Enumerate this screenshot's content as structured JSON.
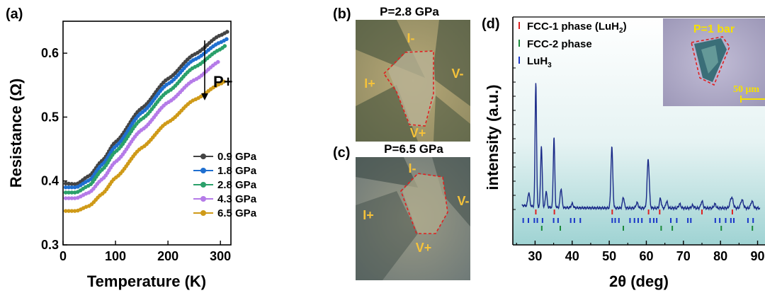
{
  "panel_labels": [
    "(a)",
    "(b)",
    "(c)",
    "(d)"
  ],
  "chart_data": [
    {
      "type": "scatter",
      "xlabel": "Temperature (K)",
      "ylabel": "Resistance (Ω)",
      "xlim": [
        0,
        320
      ],
      "ylim": [
        0.3,
        0.65
      ],
      "xticks": [
        0,
        100,
        200,
        300
      ],
      "yticks": [
        0.3,
        0.4,
        0.5,
        0.6
      ],
      "xtick_labels": [
        "0",
        "100",
        "200",
        "300"
      ],
      "ytick_labels": [
        "0.3",
        "0.4",
        "0.5",
        "0.6"
      ],
      "legend_position": "bottom-right",
      "annotation": "P+",
      "series": [
        {
          "name": "0.9 GPa",
          "color": "#444444",
          "x": [
            5,
            25,
            50,
            75,
            100,
            150,
            200,
            250,
            300,
            315
          ],
          "y": [
            0.396,
            0.395,
            0.408,
            0.432,
            0.461,
            0.514,
            0.56,
            0.598,
            0.628,
            0.634
          ]
        },
        {
          "name": "1.8 GPa",
          "color": "#1f6fd0",
          "x": [
            5,
            25,
            50,
            75,
            100,
            150,
            200,
            250,
            300,
            315
          ],
          "y": [
            0.39,
            0.39,
            0.401,
            0.426,
            0.454,
            0.507,
            0.552,
            0.59,
            0.617,
            0.623
          ]
        },
        {
          "name": "2.8 GPa",
          "color": "#2aa06a",
          "x": [
            5,
            25,
            50,
            75,
            100,
            150,
            200,
            250,
            300,
            310
          ],
          "y": [
            0.382,
            0.382,
            0.393,
            0.418,
            0.446,
            0.497,
            0.54,
            0.578,
            0.606,
            0.612
          ]
        },
        {
          "name": "4.3 GPa",
          "color": "#b57be8",
          "x": [
            5,
            25,
            50,
            75,
            100,
            150,
            200,
            250,
            300
          ],
          "y": [
            0.373,
            0.373,
            0.382,
            0.403,
            0.43,
            0.48,
            0.523,
            0.558,
            0.588
          ]
        },
        {
          "name": "6.5 GPa",
          "color": "#cf9a18",
          "x": [
            5,
            25,
            50,
            75,
            100,
            150,
            200,
            250,
            300,
            310
          ],
          "y": [
            0.353,
            0.353,
            0.361,
            0.38,
            0.405,
            0.452,
            0.492,
            0.527,
            0.552,
            0.557
          ]
        }
      ]
    },
    {
      "type": "line",
      "xlabel": "2θ (deg)",
      "ylabel": "intensity (a.u.)",
      "xlim": [
        24,
        92
      ],
      "xticks": [
        30,
        40,
        50,
        60,
        70,
        80,
        90
      ],
      "xtick_labels": [
        "30",
        "40",
        "50",
        "60",
        "70",
        "80",
        "90"
      ],
      "legend_position": "top-left",
      "series": [
        {
          "name": "FCC-1 phase (LuH2)",
          "color": "#dd2222",
          "ticks": [
            30.2,
            35.2,
            50.8,
            60.6,
            63.6,
            75.0,
            83.2
          ]
        },
        {
          "name": "FCC-2 phase",
          "color": "#1b8a3a",
          "ticks": [
            31.8,
            36.8,
            53.8,
            64.0,
            67.0,
            80.2,
            88.6
          ]
        },
        {
          "name": "LuH3",
          "color": "#1a36c8",
          "ticks": [
            26.8,
            28.2,
            29.8,
            30.6,
            32.0,
            35.0,
            36.2,
            39.6,
            40.6,
            42.2,
            50.8,
            51.6,
            52.6,
            55.6,
            56.8,
            57.8,
            58.8,
            61.0,
            62.0,
            62.8,
            66.6,
            68.2,
            71.2,
            72.0,
            78.6,
            79.8,
            81.4,
            82.8,
            83.6,
            87.4,
            88.8
          ]
        },
        {
          "name": "pattern",
          "color": "#1a2a88",
          "peaks": [
            [
              28.3,
              0.1,
              0.35
            ],
            [
              30.2,
              0.92,
              0.28
            ],
            [
              31.7,
              0.45,
              0.3
            ],
            [
              33.0,
              0.12,
              0.3
            ],
            [
              35.1,
              0.52,
              0.28
            ],
            [
              37.0,
              0.14,
              0.35
            ],
            [
              40.0,
              0.03,
              0.4
            ],
            [
              50.7,
              0.45,
              0.35
            ],
            [
              53.8,
              0.08,
              0.35
            ],
            [
              57.5,
              0.04,
              0.4
            ],
            [
              60.5,
              0.36,
              0.4
            ],
            [
              63.8,
              0.07,
              0.35
            ],
            [
              65.5,
              0.05,
              0.35
            ],
            [
              69.0,
              0.03,
              0.4
            ],
            [
              72.5,
              0.02,
              0.4
            ],
            [
              75.0,
              0.05,
              0.4
            ],
            [
              78.5,
              0.03,
              0.4
            ],
            [
              83.0,
              0.08,
              0.55
            ],
            [
              85.8,
              0.06,
              0.5
            ],
            [
              88.5,
              0.05,
              0.45
            ]
          ]
        }
      ]
    }
  ],
  "photo_b": {
    "title": "P=2.8 GPa",
    "labels": [
      "I-",
      "I+",
      "V-",
      "V+"
    ]
  },
  "photo_c": {
    "title": "P=6.5 GPa",
    "labels": [
      "I-",
      "I+",
      "V-",
      "V+"
    ]
  },
  "inset_d": {
    "title": "P=1 bar",
    "scale": "50 μm"
  },
  "colors": {
    "photo_label": "#f5c23a",
    "outline": "#e02020",
    "xrd_bg_top": "#ffffff",
    "xrd_bg_bottom": "#9fd3d3"
  }
}
